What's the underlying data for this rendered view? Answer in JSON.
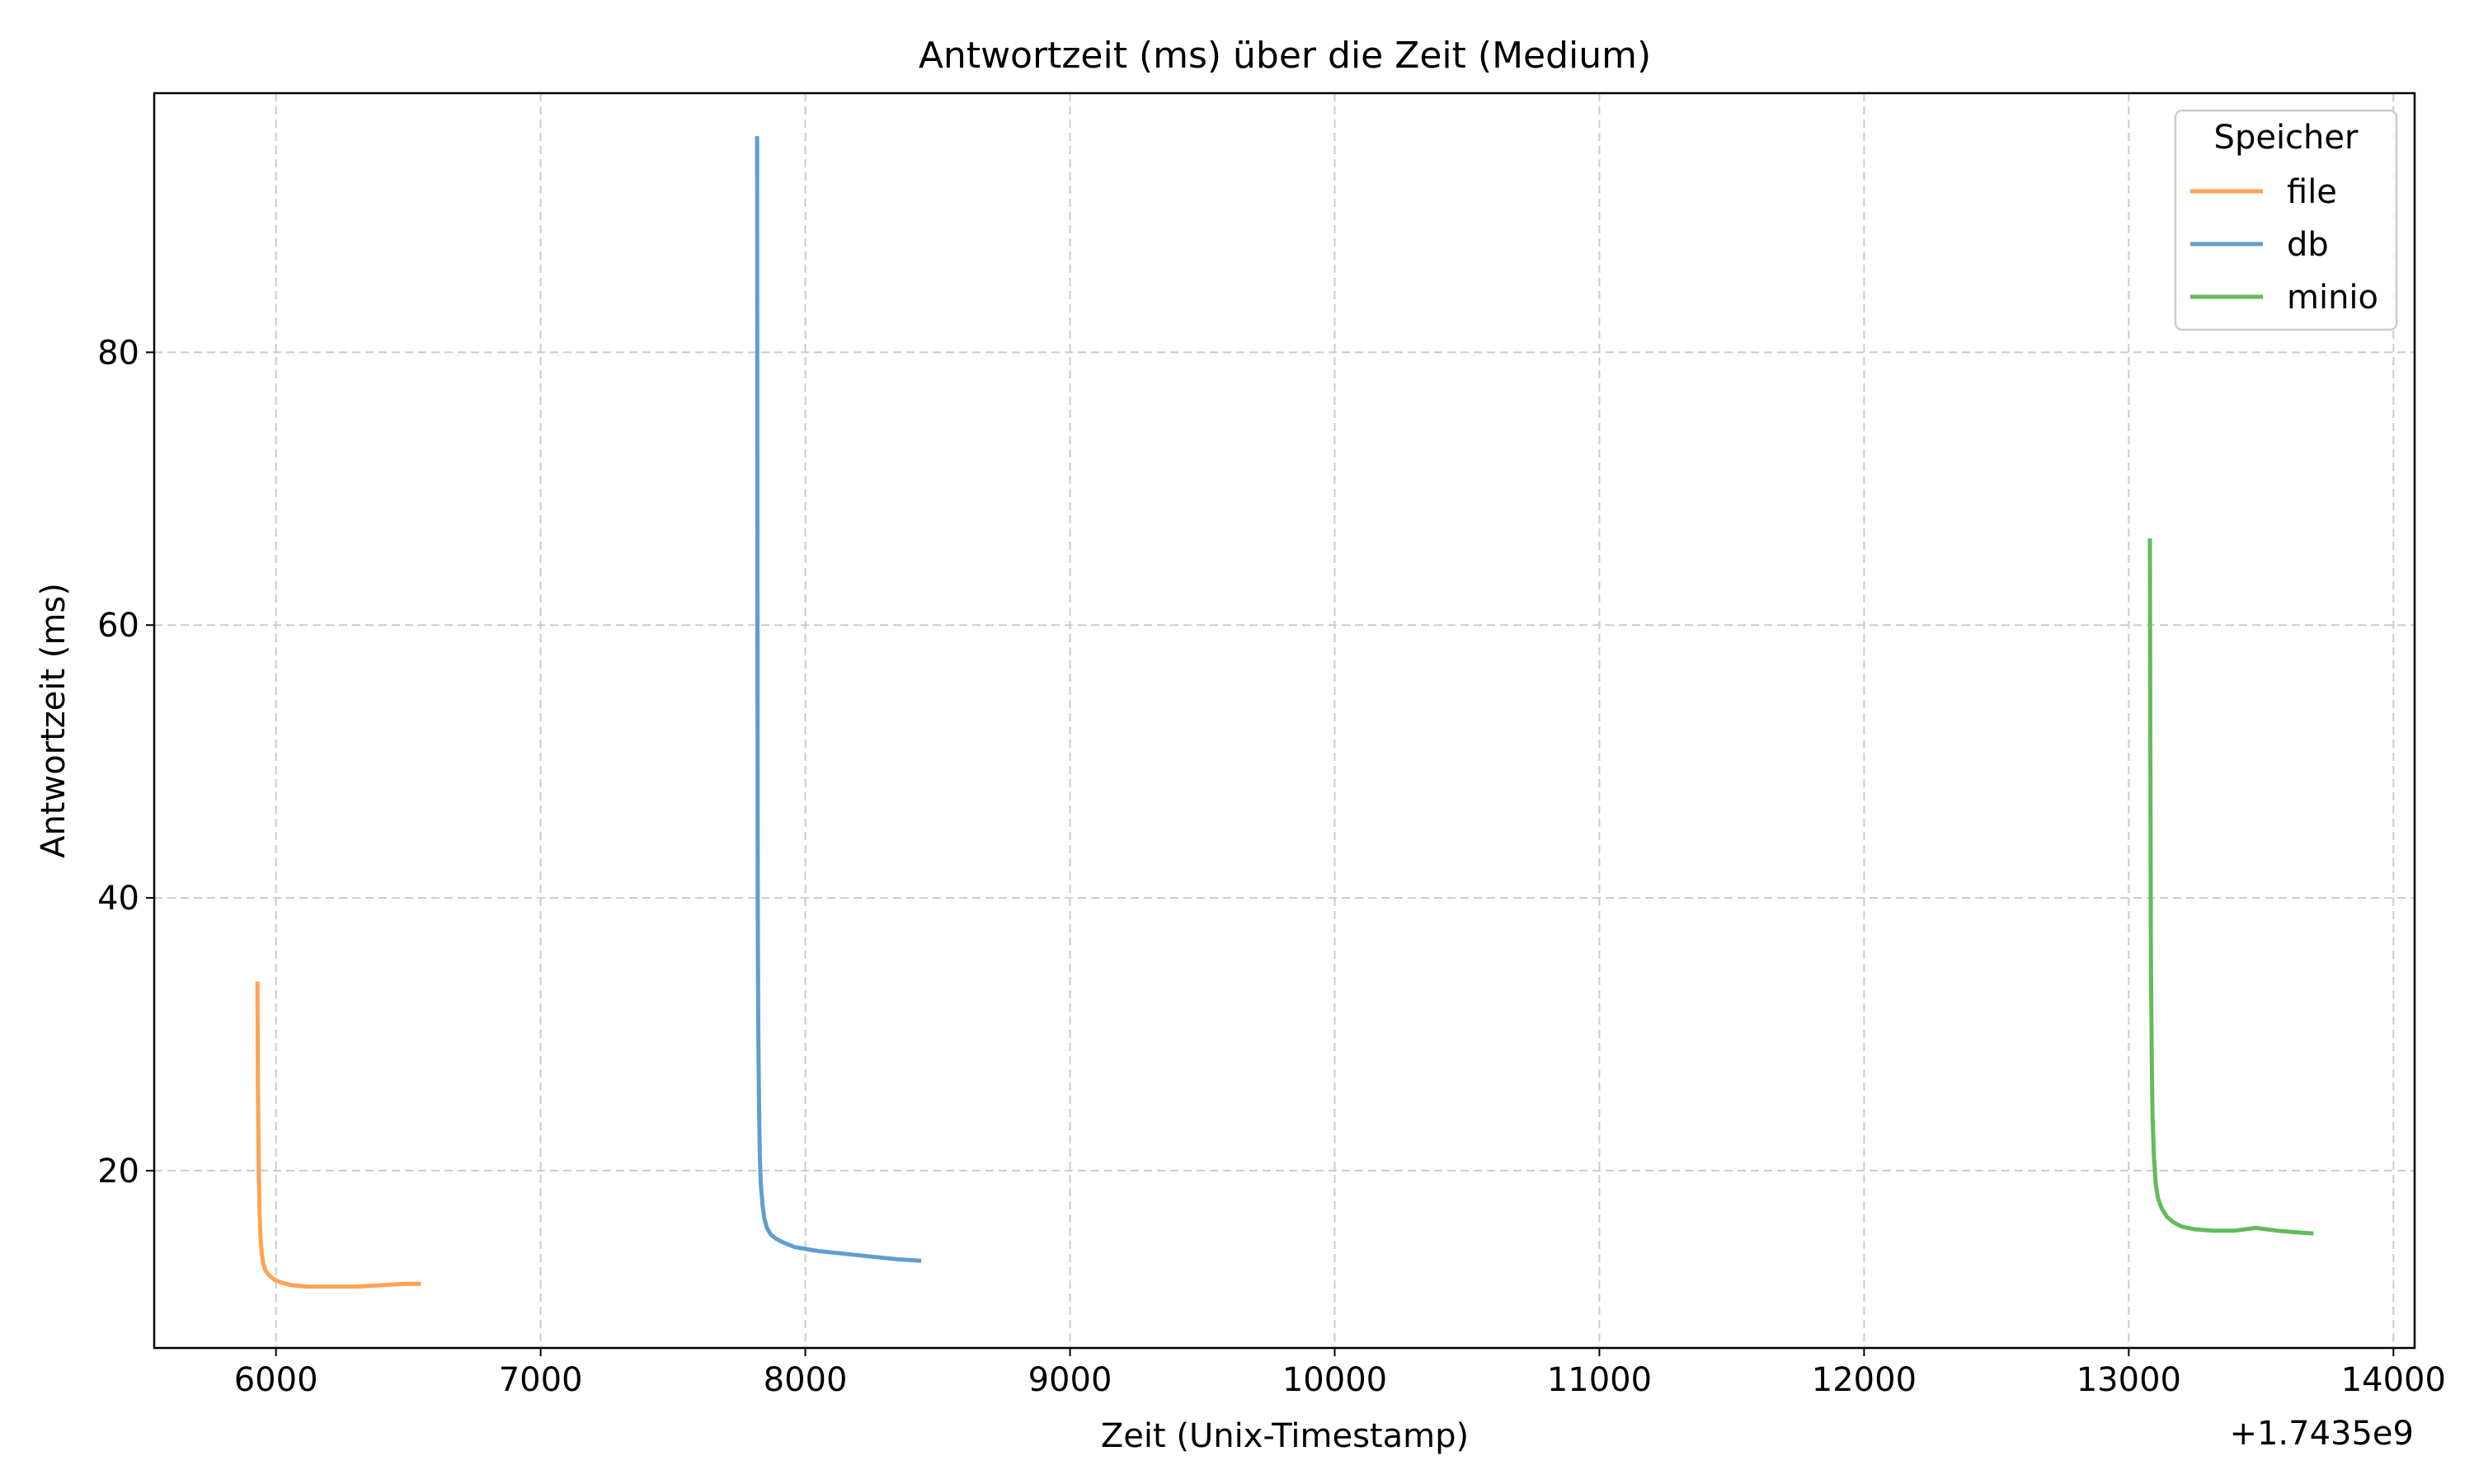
{
  "chart_data": {
    "type": "line",
    "title": "Antwortzeit (ms) über die Zeit (Medium)",
    "xlabel": "Zeit (Unix-Timestamp)",
    "ylabel": "Antwortzeit (ms)",
    "x_offset_label": "+1.7435e9",
    "xlim": [
      5540,
      14080
    ],
    "ylim": [
      7,
      99
    ],
    "x_ticks": [
      6000,
      7000,
      8000,
      9000,
      10000,
      11000,
      12000,
      13000,
      14000
    ],
    "x_tick_labels": [
      "6000",
      "7000",
      "8000",
      "9000",
      "10000",
      "11000",
      "12000",
      "13000",
      "14000"
    ],
    "y_ticks": [
      20,
      40,
      60,
      80
    ],
    "y_tick_labels": [
      "20",
      "40",
      "60",
      "80"
    ],
    "grid": true,
    "legend": {
      "title": "Speicher",
      "position": "top-right"
    },
    "series": [
      {
        "name": "file",
        "color": "#ffa254",
        "x": [
          5930,
          5931,
          5932,
          5935,
          5938,
          5942,
          5946,
          5952,
          5960,
          5975,
          5995,
          6020,
          6060,
          6120,
          6200,
          6300,
          6400,
          6480,
          6540
        ],
        "y": [
          33.7,
          30.0,
          26.0,
          20.0,
          17.0,
          15.0,
          14.0,
          13.2,
          12.7,
          12.3,
          12.0,
          11.8,
          11.6,
          11.5,
          11.5,
          11.5,
          11.6,
          11.7,
          11.7
        ]
      },
      {
        "name": "db",
        "color": "#5f9ecf",
        "x": [
          7818,
          7819,
          7820,
          7822,
          7825,
          7828,
          7832,
          7838,
          7845,
          7855,
          7870,
          7890,
          7920,
          7960,
          8050,
          8150,
          8250,
          8350,
          8430
        ],
        "y": [
          95.7,
          60.0,
          40.0,
          31.0,
          25.0,
          21.0,
          19.0,
          17.5,
          16.5,
          15.8,
          15.3,
          15.0,
          14.7,
          14.4,
          14.1,
          13.9,
          13.7,
          13.5,
          13.4
        ]
      },
      {
        "name": "minio",
        "color": "#63bb5c",
        "x": [
          13080,
          13081,
          13082,
          13084,
          13087,
          13090,
          13095,
          13102,
          13110,
          13125,
          13145,
          13170,
          13200,
          13250,
          13320,
          13400,
          13480,
          13560,
          13620,
          13690
        ],
        "y": [
          66.2,
          55.0,
          47.0,
          35.0,
          28.0,
          24.0,
          21.0,
          19.0,
          18.0,
          17.2,
          16.6,
          16.2,
          15.9,
          15.7,
          15.6,
          15.6,
          15.8,
          15.6,
          15.5,
          15.4
        ]
      }
    ]
  }
}
